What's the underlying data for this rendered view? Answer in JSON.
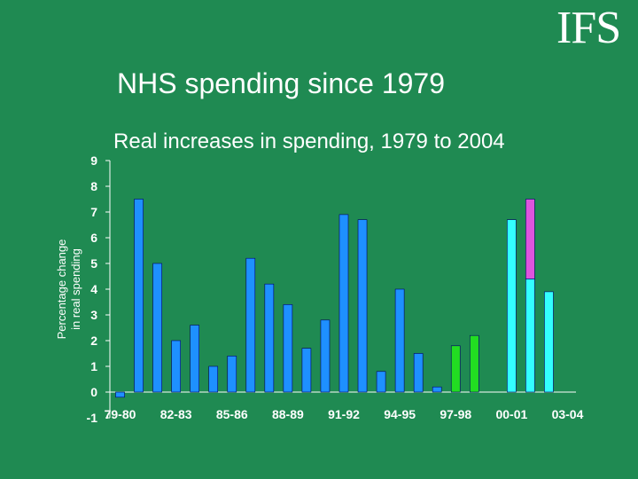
{
  "logo": {
    "text": "IFS"
  },
  "slide": {
    "title": "NHS spending since 1979"
  },
  "colors": {
    "background": "#1f8a52",
    "blue": "#1e90ff",
    "green": "#22dd22",
    "cyan": "#33ffff",
    "magenta": "#dd55dd",
    "bar_outline": "#000066",
    "axis": "#ffffff"
  },
  "chart_data": {
    "type": "bar",
    "title": "Real increases in spending, 1979 to 2004",
    "ylabel_lines": [
      "Percentage change",
      "in real spending"
    ],
    "xlabel": "",
    "ylim": [
      -1,
      9
    ],
    "yticks": [
      -1,
      0,
      1,
      2,
      3,
      4,
      5,
      6,
      7,
      8,
      9
    ],
    "xtick_labels": [
      "79-80",
      "82-83",
      "85-86",
      "88-89",
      "91-92",
      "94-95",
      "97-98",
      "00-01",
      "03-04"
    ],
    "categories": [
      "79-80",
      "80-81",
      "81-82",
      "82-83",
      "83-84",
      "84-85",
      "85-86",
      "86-87",
      "87-88",
      "88-89",
      "89-90",
      "90-91",
      "91-92",
      "92-93",
      "93-94",
      "94-95",
      "95-96",
      "96-97",
      "97-98",
      "98-99",
      "99-00",
      "00-01",
      "01-02",
      "02-03",
      "03-04"
    ],
    "values": [
      -0.2,
      7.5,
      5.0,
      2.0,
      2.6,
      1.0,
      1.4,
      5.2,
      4.2,
      3.4,
      1.7,
      2.8,
      6.9,
      6.7,
      0.8,
      4.0,
      1.5,
      0.2,
      1.8,
      2.2,
      null,
      6.7,
      4.4,
      3.9,
      null
    ],
    "bar_colors": [
      "blue",
      "blue",
      "blue",
      "blue",
      "blue",
      "blue",
      "blue",
      "blue",
      "blue",
      "blue",
      "blue",
      "blue",
      "blue",
      "blue",
      "blue",
      "blue",
      "blue",
      "blue",
      "green",
      "green",
      "none",
      "cyan",
      "cyan",
      "cyan",
      "none"
    ],
    "stacked_extra": {
      "category": "01-02",
      "base": 4.4,
      "top": 7.5,
      "color": "magenta"
    },
    "grid": false
  }
}
